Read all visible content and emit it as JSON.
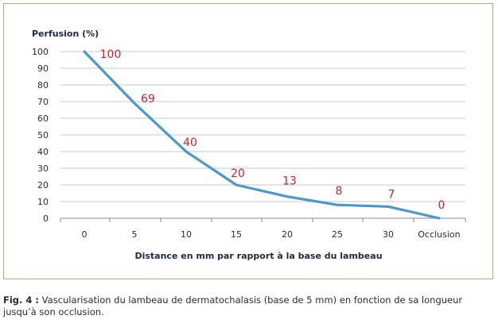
{
  "chart_data": {
    "type": "line",
    "categories": [
      "0",
      "5",
      "10",
      "15",
      "20",
      "25",
      "30",
      "Occlusion"
    ],
    "values": [
      100,
      69,
      40,
      20,
      13,
      8,
      7,
      0
    ],
    "data_labels": [
      "100",
      "69",
      "40",
      "20",
      "13",
      "8",
      "7",
      "0"
    ],
    "ylabel": "Perfusion (%)",
    "xlabel": "Distance en mm par rapport à la base du lambeau",
    "ylim": [
      0,
      100
    ],
    "yticks": [
      "0",
      "10",
      "20",
      "30",
      "40",
      "50",
      "60",
      "70",
      "80",
      "90",
      "100"
    ],
    "grid": true,
    "line_color": "#4a98d0",
    "label_color": "#d0202c",
    "grid_color": "#c8c8c8",
    "frame_color": "#c8a36b"
  },
  "caption": {
    "prefix": "Fig. 4 :",
    "text": "Vascularisation du lambeau de dermatochalasis (base de 5 mm) en fonction de sa longueur jusqu’à son occlusion."
  }
}
